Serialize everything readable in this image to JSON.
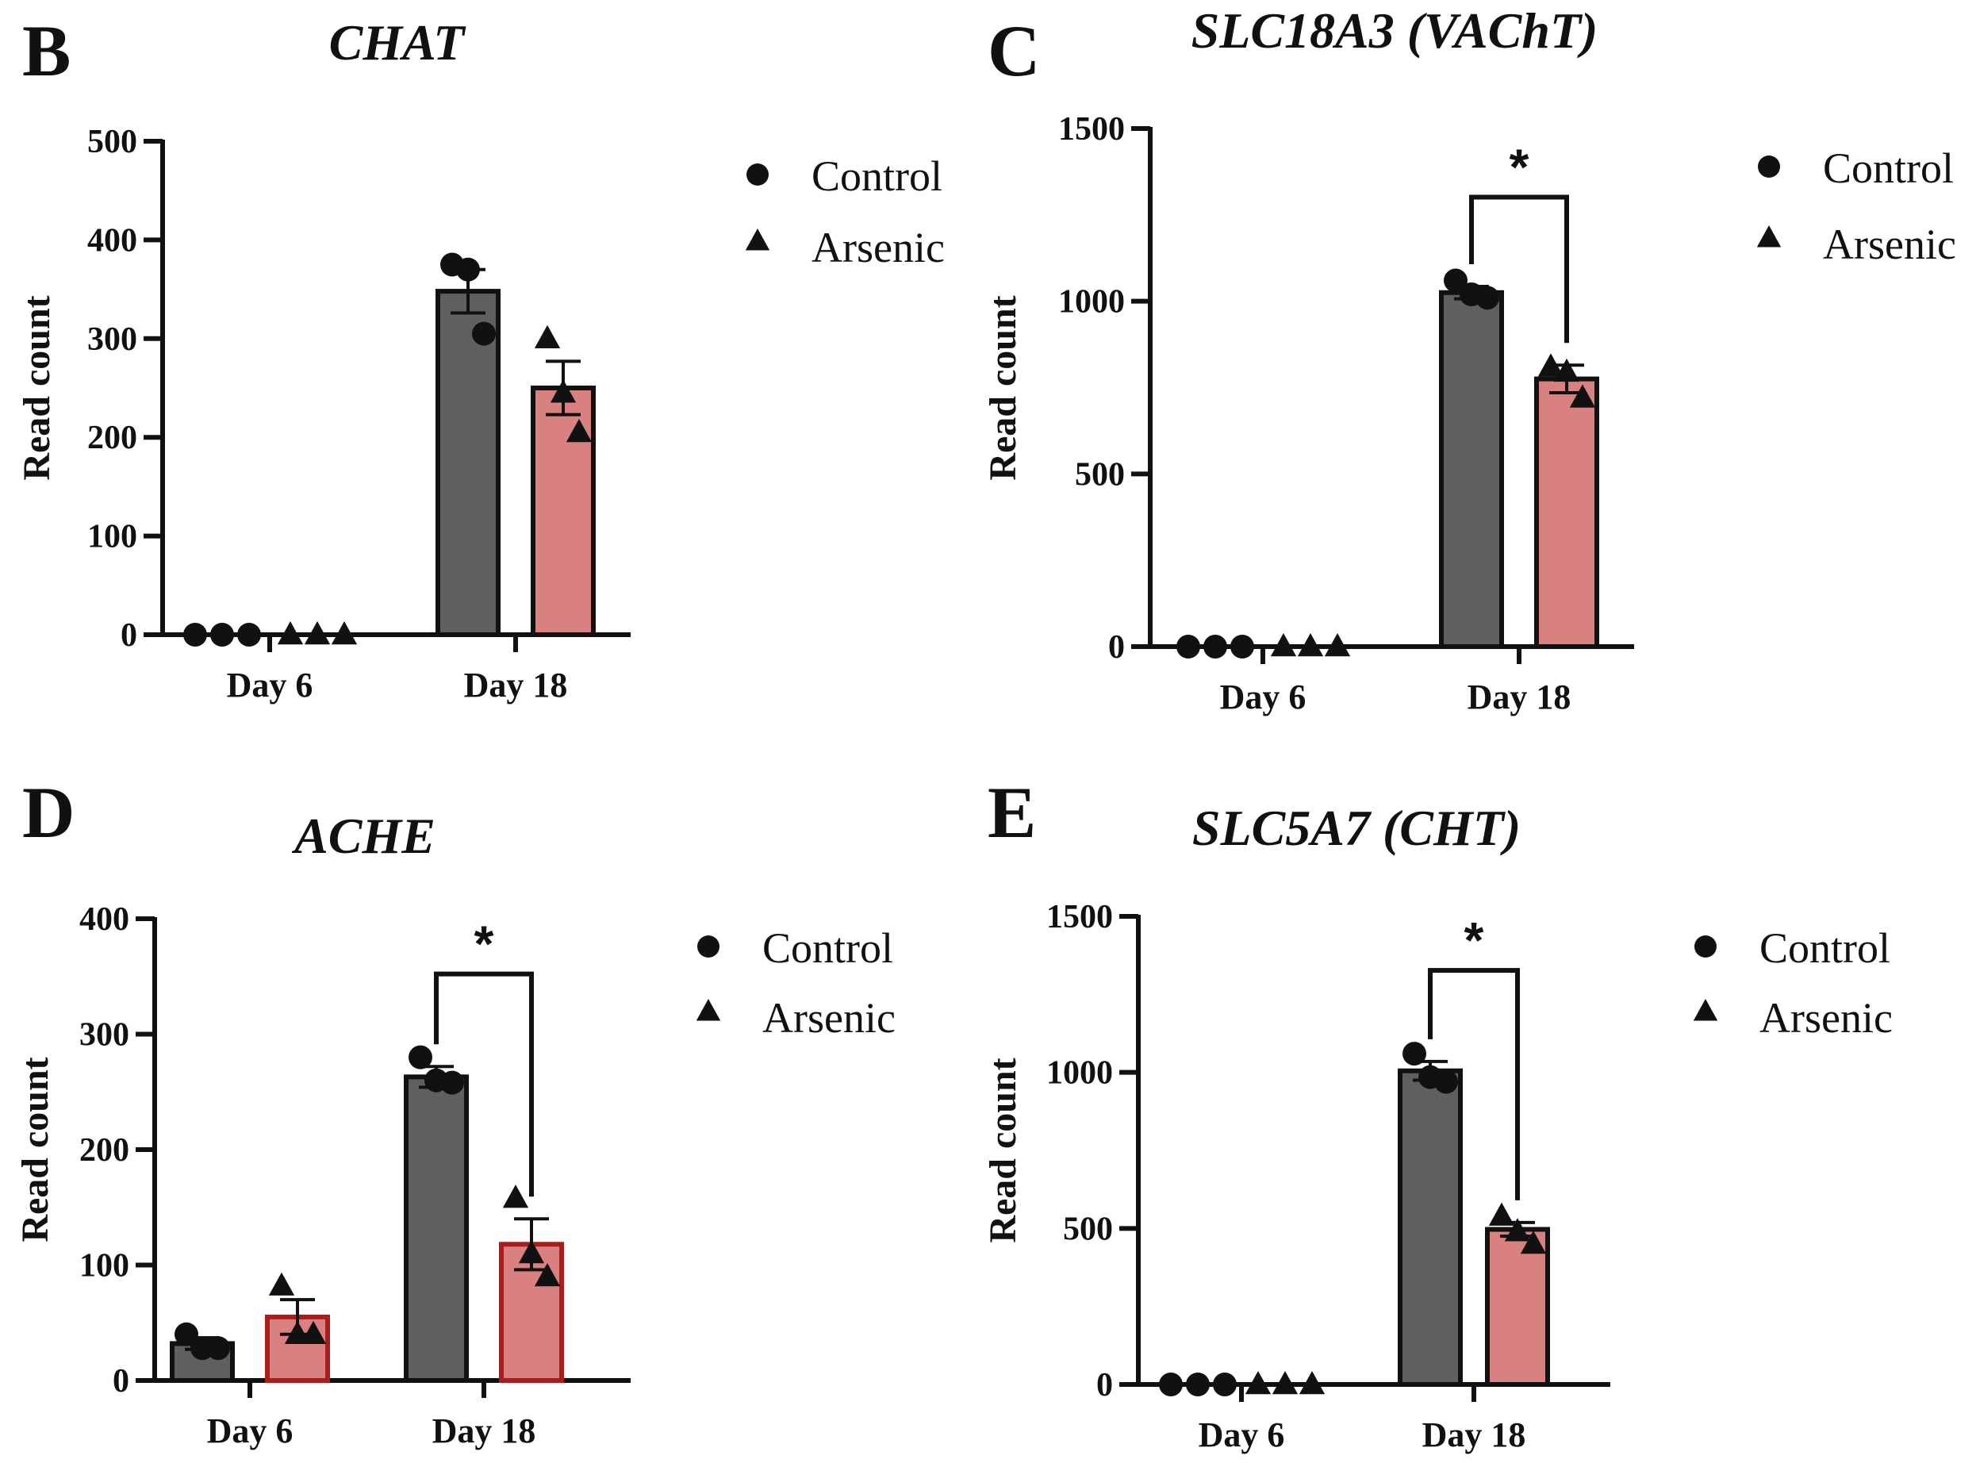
{
  "colors": {
    "control_fill": "#5f5f5f",
    "arsenic_fill": "#d98080",
    "arsenic_outline_d": "#a91d1d",
    "ink": "#111111"
  },
  "legend": {
    "control": "Control",
    "arsenic": "Arsenic"
  },
  "chart_data": [
    {
      "id": "B",
      "panel_label": "B",
      "type": "bar",
      "title": "CHAT",
      "ylabel": "Read count",
      "xlabel": "",
      "ylim": [
        0,
        500
      ],
      "yticks": [
        0,
        100,
        200,
        300,
        400,
        500
      ],
      "categories": [
        "Day 6",
        "Day 18"
      ],
      "series": [
        {
          "name": "Control",
          "values": [
            0,
            348
          ],
          "errors": [
            0,
            22
          ],
          "points": [
            [
              0,
              0,
              0
            ],
            [
              375,
              370,
              305
            ]
          ]
        },
        {
          "name": "Arsenic",
          "values": [
            0,
            250
          ],
          "errors": [
            0,
            27
          ],
          "points": [
            [
              0,
              0,
              0
            ],
            [
              300,
              245,
              205
            ]
          ]
        }
      ],
      "significance": []
    },
    {
      "id": "C",
      "panel_label": "C",
      "type": "bar",
      "title": "SLC18A3 (VAChT)",
      "ylabel": "Read count",
      "xlabel": "",
      "ylim": [
        0,
        1500
      ],
      "yticks": [
        0,
        500,
        1000,
        1500
      ],
      "categories": [
        "Day 6",
        "Day 18"
      ],
      "series": [
        {
          "name": "Control",
          "values": [
            0,
            1025
          ],
          "errors": [
            0,
            18
          ],
          "points": [
            [
              0,
              0,
              0
            ],
            [
              1060,
              1020,
              1010
            ]
          ]
        },
        {
          "name": "Arsenic",
          "values": [
            0,
            775
          ],
          "errors": [
            0,
            40
          ],
          "points": [
            [
              0,
              0,
              0
            ],
            [
              810,
              795,
              720
            ]
          ]
        }
      ],
      "significance": [
        {
          "category": 1,
          "label": "*"
        }
      ]
    },
    {
      "id": "D",
      "panel_label": "D",
      "type": "bar",
      "title": "ACHE",
      "ylabel": "Read count",
      "xlabel": "",
      "ylim": [
        0,
        400
      ],
      "yticks": [
        0,
        100,
        200,
        300,
        400
      ],
      "categories": [
        "Day 6",
        "Day 18"
      ],
      "series": [
        {
          "name": "Control",
          "values": [
            32,
            263
          ],
          "errors": [
            5,
            9
          ],
          "points": [
            [
              40,
              28,
              28
            ],
            [
              280,
              260,
              258
            ]
          ]
        },
        {
          "name": "Arsenic",
          "values": [
            55,
            118
          ],
          "errors": [
            15,
            22
          ],
          "points": [
            [
              82,
              40,
              40
            ],
            [
              158,
              110,
              90
            ]
          ]
        }
      ],
      "significance": [
        {
          "category": 1,
          "label": "*"
        }
      ]
    },
    {
      "id": "E",
      "panel_label": "E",
      "type": "bar",
      "title": "SLC5A7 (CHT)",
      "ylabel": "Read count",
      "xlabel": "",
      "ylim": [
        0,
        1500
      ],
      "yticks": [
        0,
        500,
        1000,
        1500
      ],
      "categories": [
        "Day 6",
        "Day 18"
      ],
      "series": [
        {
          "name": "Control",
          "values": [
            0,
            1005
          ],
          "errors": [
            0,
            30
          ],
          "points": [
            [
              0,
              0,
              0
            ],
            [
              1060,
              985,
              970
            ]
          ]
        },
        {
          "name": "Arsenic",
          "values": [
            0,
            497
          ],
          "errors": [
            0,
            22
          ],
          "points": [
            [
              0,
              0,
              0
            ],
            [
              540,
              490,
              450
            ]
          ]
        }
      ],
      "significance": [
        {
          "category": 1,
          "label": "*"
        }
      ]
    }
  ]
}
